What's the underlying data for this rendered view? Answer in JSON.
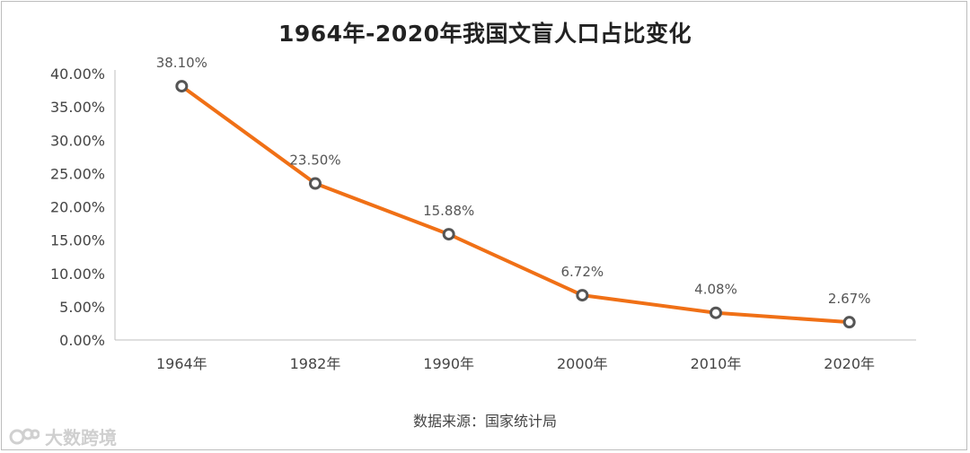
{
  "chart_data": {
    "type": "line",
    "title": "1964年-2020年我国文盲人口占比变化",
    "categories": [
      "1964年",
      "1982年",
      "1990年",
      "2000年",
      "2010年",
      "2020年"
    ],
    "values": [
      38.1,
      23.5,
      15.88,
      6.72,
      4.08,
      2.67
    ],
    "data_labels": [
      "38.10%",
      "23.50%",
      "15.88%",
      "6.72%",
      "4.08%",
      "2.67%"
    ],
    "y_ticks": [
      "0.00%",
      "5.00%",
      "10.00%",
      "15.00%",
      "20.00%",
      "25.00%",
      "30.00%",
      "35.00%",
      "40.00%"
    ],
    "ylim": [
      0,
      40
    ],
    "grid": false,
    "line_color": "#f07016",
    "marker_fill": "#ffffff",
    "marker_stroke": "#555555"
  },
  "source": "数据来源：国家统计局",
  "watermark": "大数跨境"
}
